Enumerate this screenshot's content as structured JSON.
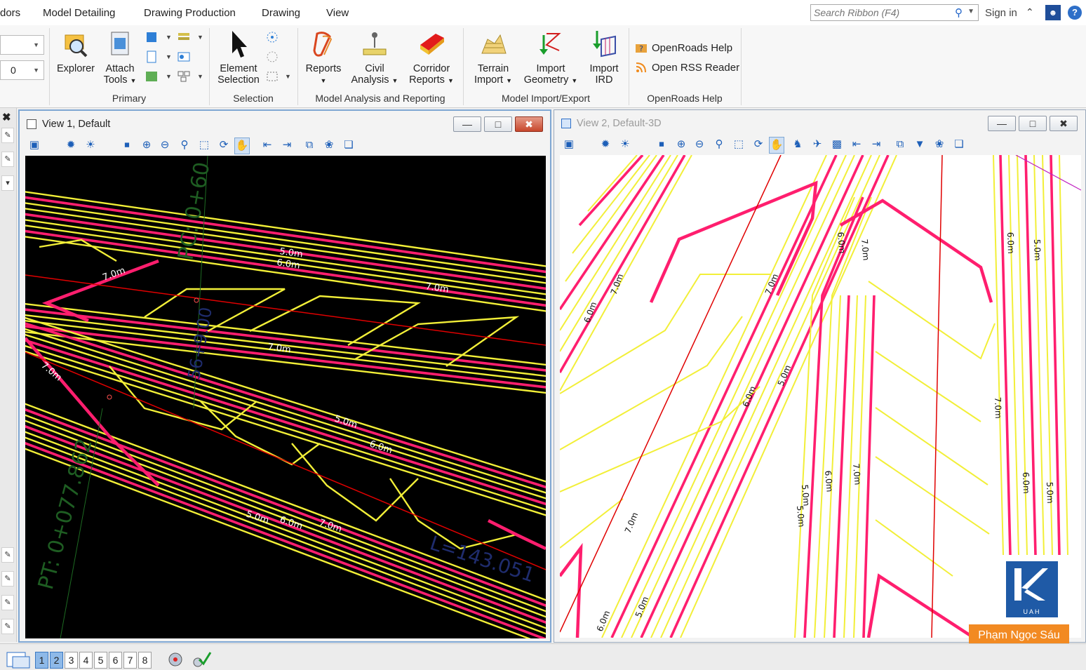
{
  "menu": {
    "tabs": [
      "dors",
      "Model Detailing",
      "Drawing Production",
      "Drawing",
      "View"
    ],
    "search_placeholder": "Search Ribbon (F4)",
    "signin": "Sign in"
  },
  "ribbon": {
    "combo_value": "0",
    "groups": {
      "primary": "Primary",
      "selection": "Selection",
      "model_analysis": "Model Analysis and Reporting",
      "model_import": "Model Import/Export",
      "openroads_help": "OpenRoads Help"
    },
    "buttons": {
      "explorer": "Explorer",
      "attach_1": "Attach",
      "attach_2": "Tools",
      "element_1": "Element",
      "element_2": "Selection",
      "reports": "Reports",
      "civil_1": "Civil",
      "civil_2": "Analysis",
      "corridor_1": "Corridor",
      "corridor_2": "Reports",
      "terrain_1": "Terrain",
      "terrain_2": "Import",
      "import_geo_1": "Import",
      "import_geo_2": "Geometry",
      "import_ird_1": "Import",
      "import_ird_2": "IRD",
      "openroads_help": "OpenRoads Help",
      "rss": "Open RSS Reader"
    }
  },
  "view1": {
    "title": "View 1, Default",
    "labels": {
      "station_pc": "PC: 0+60",
      "station_pt": "PT: 0+077.862",
      "station_mid": "56+9.00",
      "length": "L=143.051",
      "c7_a": "7.0m",
      "c7_b": "7.0m",
      "c7_c": "7.0m",
      "c7_d": "7.0m",
      "c7_e": "7.0m",
      "c6_a": "6.0m",
      "c6_b": "6.0m",
      "c5_a": "5.0m",
      "c5_b": "5.0m",
      "c5_c": "5.0m",
      "c6_c": "6.0m"
    }
  },
  "view2": {
    "title": "View 2, Default-3D",
    "labels": {
      "a": "7.0m",
      "b": "6.0m",
      "c": "7.0m",
      "d": "5.0m",
      "e": "6.0m",
      "f": "7.0m",
      "g": "6.0m",
      "h": "5.0m",
      "i": "7.0m",
      "j": "6.0m",
      "k": "5.0m",
      "l": "7.0m",
      "m": "6.0m",
      "n": "5.0m",
      "o": "7.0m",
      "p": "6.0m",
      "q": "5.0m",
      "r": "6.0m",
      "s": "5.0m"
    }
  },
  "views_bar": [
    "1",
    "2",
    "3",
    "4",
    "5",
    "6",
    "7",
    "8"
  ],
  "watermark": {
    "logo_text": "UAH",
    "author": "Phạm Ngọc Sáu"
  },
  "colors": {
    "contour_major": "#ff1e6e",
    "contour_minor": "#f2ef38",
    "alignment": "#e00000",
    "accent": "#2e6fc8"
  }
}
